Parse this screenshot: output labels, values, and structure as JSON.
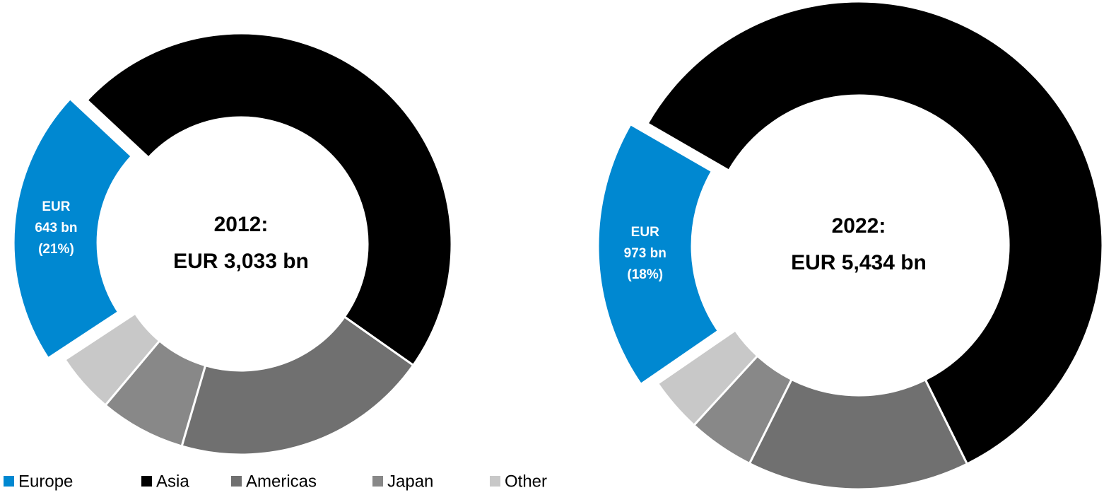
{
  "chart_data": [
    {
      "type": "pie",
      "title": "2012:",
      "center_text": "EUR 3,033 bn",
      "categories": [
        "Europe",
        "Asia",
        "Americas",
        "Japan",
        "Other"
      ],
      "values": [
        643,
        1450,
        600,
        200,
        140
      ],
      "value_labels": [
        [
          "EUR",
          "643 bn",
          "(21%)"
        ],
        null,
        null,
        null,
        null
      ],
      "colors": [
        "#0088d1",
        "#000000",
        "#707070",
        "#888888",
        "#c8c8c8"
      ],
      "legend": "bottom-left"
    },
    {
      "type": "pie",
      "title": "2022:",
      "center_text": "EUR 5,434 bn",
      "categories": [
        "Europe",
        "Asia",
        "Americas",
        "Japan",
        "Other"
      ],
      "values": [
        973,
        3225,
        800,
        240,
        196
      ],
      "value_labels": [
        [
          "EUR",
          "973 bn",
          "(18%)"
        ],
        null,
        null,
        null,
        null
      ],
      "colors": [
        "#0088d1",
        "#000000",
        "#707070",
        "#888888",
        "#c8c8c8"
      ]
    }
  ]
}
